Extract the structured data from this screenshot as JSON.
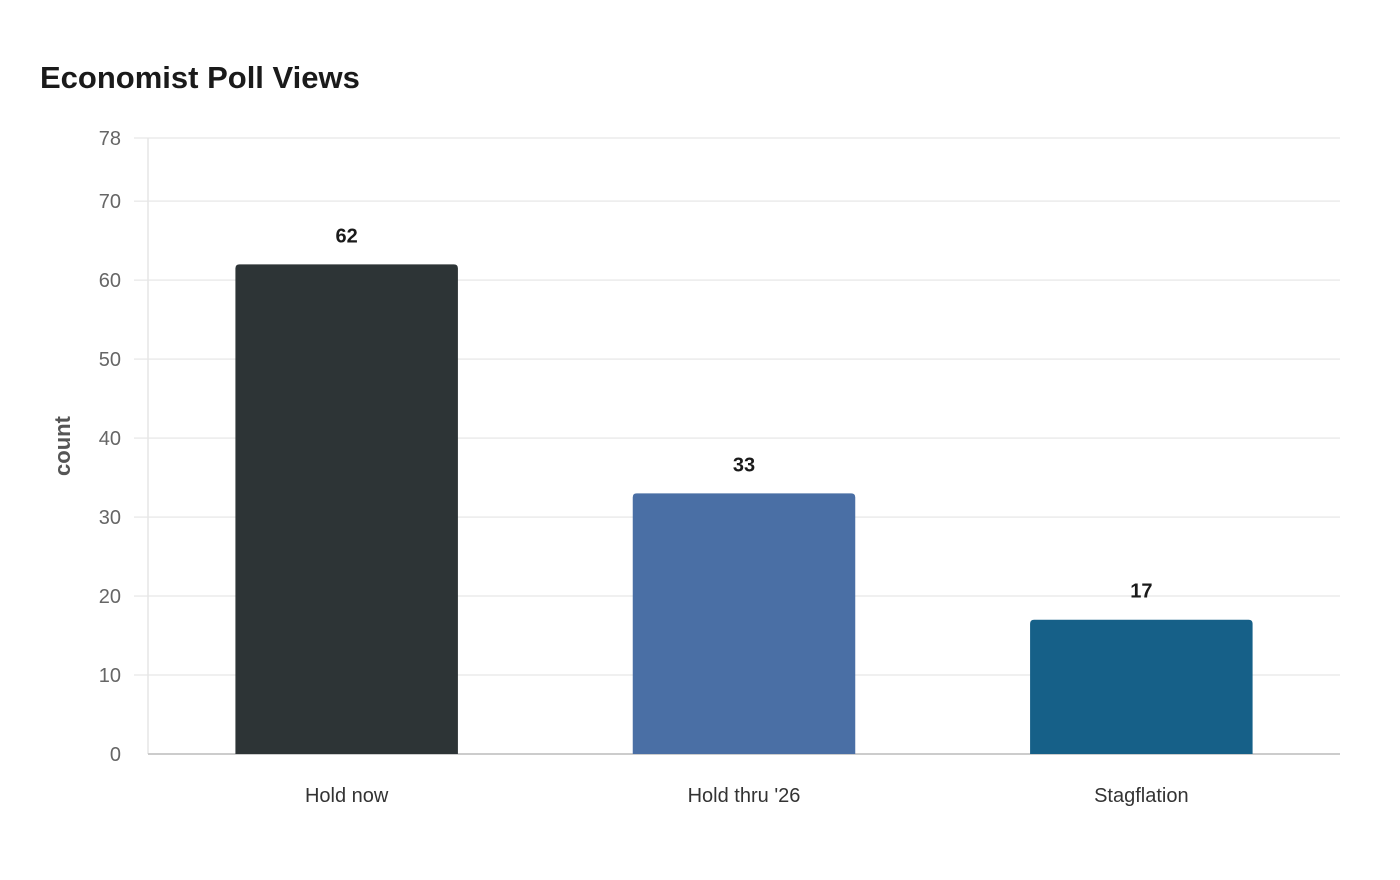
{
  "chart_data": {
    "type": "bar",
    "title": "Economist Poll Views",
    "xlabel": "",
    "ylabel": "count",
    "categories": [
      "Hold now",
      "Hold thru '26",
      "Stagflation"
    ],
    "values": [
      62,
      33,
      17
    ],
    "value_labels": [
      "62",
      "33",
      "17"
    ],
    "colors": [
      "#2d3436",
      "#4a6fa5",
      "#166088"
    ],
    "ylim": [
      0,
      78
    ],
    "yticks": [
      0,
      10,
      20,
      30,
      40,
      50,
      60,
      70,
      78
    ],
    "grid": true,
    "legend": "none"
  }
}
